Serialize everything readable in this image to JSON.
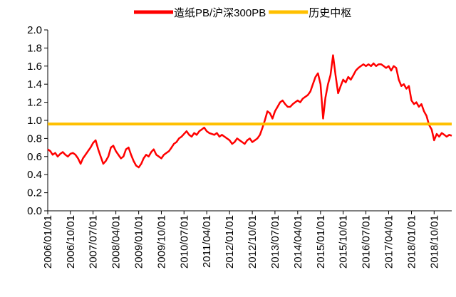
{
  "chart_data": {
    "type": "line",
    "legend": "top-right",
    "x": [
      "2006/01/01",
      "2006/02/01",
      "2006/03/01",
      "2006/04/01",
      "2006/05/01",
      "2006/06/01",
      "2006/07/01",
      "2006/08/01",
      "2006/09/01",
      "2006/10/01",
      "2006/11/01",
      "2006/12/01",
      "2007/01/01",
      "2007/02/01",
      "2007/03/01",
      "2007/04/01",
      "2007/05/01",
      "2007/06/01",
      "2007/07/01",
      "2007/08/01",
      "2007/09/01",
      "2007/10/01",
      "2007/11/01",
      "2007/12/01",
      "2008/01/01",
      "2008/02/01",
      "2008/03/01",
      "2008/04/01",
      "2008/05/01",
      "2008/06/01",
      "2008/07/01",
      "2008/08/01",
      "2008/09/01",
      "2008/10/01",
      "2008/11/01",
      "2008/12/01",
      "2009/01/01",
      "2009/02/01",
      "2009/03/01",
      "2009/04/01",
      "2009/05/01",
      "2009/06/01",
      "2009/07/01",
      "2009/08/01",
      "2009/09/01",
      "2009/10/01",
      "2009/11/01",
      "2009/12/01",
      "2010/01/01",
      "2010/02/01",
      "2010/03/01",
      "2010/04/01",
      "2010/05/01",
      "2010/06/01",
      "2010/07/01",
      "2010/08/01",
      "2010/09/01",
      "2010/10/01",
      "2010/11/01",
      "2010/12/01",
      "2011/01/01",
      "2011/02/01",
      "2011/03/01",
      "2011/04/01",
      "2011/05/01",
      "2011/06/01",
      "2011/07/01",
      "2011/08/01",
      "2011/09/01",
      "2011/10/01",
      "2011/11/01",
      "2011/12/01",
      "2012/01/01",
      "2012/02/01",
      "2012/03/01",
      "2012/04/01",
      "2012/05/01",
      "2012/06/01",
      "2012/07/01",
      "2012/08/01",
      "2012/09/01",
      "2012/10/01",
      "2012/11/01",
      "2012/12/01",
      "2013/01/01",
      "2013/02/01",
      "2013/03/01",
      "2013/04/01",
      "2013/05/01",
      "2013/06/01",
      "2013/07/01",
      "2013/08/01",
      "2013/09/01",
      "2013/10/01",
      "2013/11/01",
      "2013/12/01",
      "2014/01/01",
      "2014/02/01",
      "2014/03/01",
      "2014/04/01",
      "2014/05/01",
      "2014/06/01",
      "2014/07/01",
      "2014/08/01",
      "2014/09/01",
      "2014/10/01",
      "2014/11/01",
      "2014/12/01",
      "2015/01/01",
      "2015/02/01",
      "2015/03/01",
      "2015/04/01",
      "2015/05/01",
      "2015/06/01",
      "2015/07/01",
      "2015/08/01",
      "2015/09/01",
      "2015/10/01",
      "2015/11/01",
      "2015/12/01",
      "2016/01/01",
      "2016/02/01",
      "2016/03/01",
      "2016/04/01",
      "2016/05/01",
      "2016/06/01",
      "2016/07/01",
      "2016/08/01",
      "2016/09/01",
      "2016/10/01",
      "2016/11/01",
      "2016/12/01",
      "2017/01/01",
      "2017/02/01",
      "2017/03/01",
      "2017/04/01",
      "2017/05/01",
      "2017/06/01",
      "2017/07/01",
      "2017/08/01",
      "2017/09/01",
      "2017/10/01",
      "2017/11/01",
      "2017/12/01",
      "2018/01/01",
      "2018/02/01",
      "2018/03/01",
      "2018/04/01",
      "2018/05/01",
      "2018/06/01",
      "2018/07/01",
      "2018/08/01",
      "2018/09/01",
      "2018/10/01",
      "2018/11/01",
      "2018/12/01",
      "2019/01/01",
      "2019/02/01",
      "2019/03/01",
      "2019/04/01",
      "2019/05/01"
    ],
    "series": [
      {
        "name": "造纸PB/沪深300PB",
        "color": "#ff0000",
        "values": [
          0.68,
          0.66,
          0.62,
          0.64,
          0.6,
          0.63,
          0.65,
          0.62,
          0.6,
          0.63,
          0.64,
          0.62,
          0.58,
          0.52,
          0.58,
          0.62,
          0.66,
          0.7,
          0.75,
          0.78,
          0.68,
          0.6,
          0.52,
          0.55,
          0.6,
          0.7,
          0.72,
          0.66,
          0.62,
          0.58,
          0.6,
          0.68,
          0.7,
          0.62,
          0.55,
          0.5,
          0.48,
          0.52,
          0.58,
          0.62,
          0.6,
          0.65,
          0.68,
          0.62,
          0.6,
          0.58,
          0.62,
          0.64,
          0.66,
          0.7,
          0.74,
          0.76,
          0.8,
          0.82,
          0.85,
          0.88,
          0.84,
          0.82,
          0.86,
          0.84,
          0.88,
          0.9,
          0.92,
          0.88,
          0.86,
          0.85,
          0.84,
          0.86,
          0.82,
          0.84,
          0.82,
          0.8,
          0.78,
          0.74,
          0.76,
          0.8,
          0.78,
          0.76,
          0.74,
          0.78,
          0.8,
          0.76,
          0.78,
          0.8,
          0.84,
          0.92,
          1.0,
          1.1,
          1.08,
          1.02,
          1.1,
          1.15,
          1.2,
          1.22,
          1.18,
          1.15,
          1.15,
          1.18,
          1.2,
          1.22,
          1.2,
          1.24,
          1.26,
          1.28,
          1.32,
          1.4,
          1.48,
          1.52,
          1.4,
          1.02,
          1.25,
          1.4,
          1.5,
          1.72,
          1.5,
          1.3,
          1.38,
          1.45,
          1.42,
          1.48,
          1.45,
          1.5,
          1.55,
          1.58,
          1.6,
          1.62,
          1.6,
          1.62,
          1.6,
          1.63,
          1.6,
          1.62,
          1.62,
          1.6,
          1.58,
          1.6,
          1.55,
          1.6,
          1.58,
          1.45,
          1.38,
          1.4,
          1.35,
          1.38,
          1.22,
          1.18,
          1.2,
          1.15,
          1.18,
          1.1,
          1.05,
          0.95,
          0.9,
          0.78,
          0.85,
          0.82,
          0.86,
          0.84,
          0.82,
          0.84,
          0.83
        ]
      },
      {
        "name": "历史中枢",
        "color": "#ffc000",
        "x": [
          "2006/01/01",
          "2019/05/01"
        ],
        "values": [
          0.96,
          0.96
        ]
      }
    ],
    "xlim": [
      "2006/01/01",
      "2019/05/01"
    ],
    "xticks": [
      "2006/01/01",
      "2006/10/01",
      "2007/07/01",
      "2008/04/01",
      "2009/01/01",
      "2009/10/01",
      "2010/07/01",
      "2011/04/01",
      "2012/01/01",
      "2012/10/01",
      "2013/07/01",
      "2014/04/01",
      "2015/01/01",
      "2015/10/01",
      "2016/07/01",
      "2017/04/01",
      "2018/01/01",
      "2018/10/01"
    ],
    "ylim": [
      0,
      2
    ],
    "yticks": [
      {
        "value": 0,
        "label": "0.0"
      },
      0.2,
      0.4,
      0.6,
      0.8,
      {
        "value": 1,
        "label": "1.0"
      },
      1.2,
      1.4,
      1.6,
      1.8,
      {
        "value": 2,
        "label": "2.0"
      }
    ],
    "grid": false
  }
}
